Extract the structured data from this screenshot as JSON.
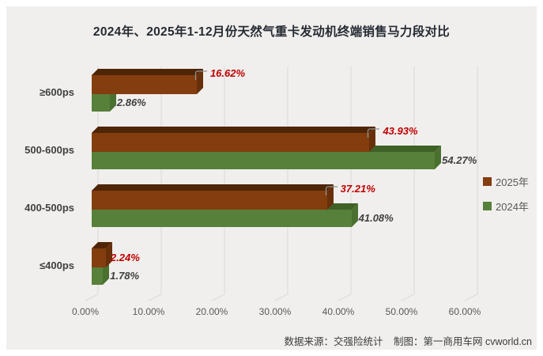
{
  "title": "2024年、2025年1-12月份天然气重卡发动机终端销售马力段对比",
  "chart_data": {
    "type": "bar",
    "orientation": "horizontal",
    "title": "2024年、2025年1-12月份天然气重卡发动机终端销售马力段对比",
    "categories": [
      "≥600ps",
      "500-600ps",
      "400-500ps",
      "≤400ps"
    ],
    "series": [
      {
        "name": "2025年",
        "color": "#843d0e",
        "label_color": "#c00000",
        "values": [
          16.62,
          43.93,
          37.21,
          2.24
        ],
        "labels": [
          "16.62%",
          "43.93%",
          "37.21%",
          "2.24%"
        ]
      },
      {
        "name": "2024年",
        "color": "#57813a",
        "label_color": "#3f3f3f",
        "values": [
          2.86,
          54.27,
          41.08,
          1.78
        ],
        "labels": [
          "2.86%",
          "54.27%",
          "41.08%",
          "1.78%"
        ]
      }
    ],
    "x_ticks": [
      "0.00%",
      "10.00%",
      "20.00%",
      "30.00%",
      "40.00%",
      "50.00%",
      "60.00%"
    ],
    "xlim": [
      0,
      65
    ],
    "grid": true,
    "legend_position": "right",
    "style": "3d"
  },
  "footer": {
    "source": "数据来源：交强险统计",
    "credit": "制图：第一商用车网 cvworld.cn"
  }
}
